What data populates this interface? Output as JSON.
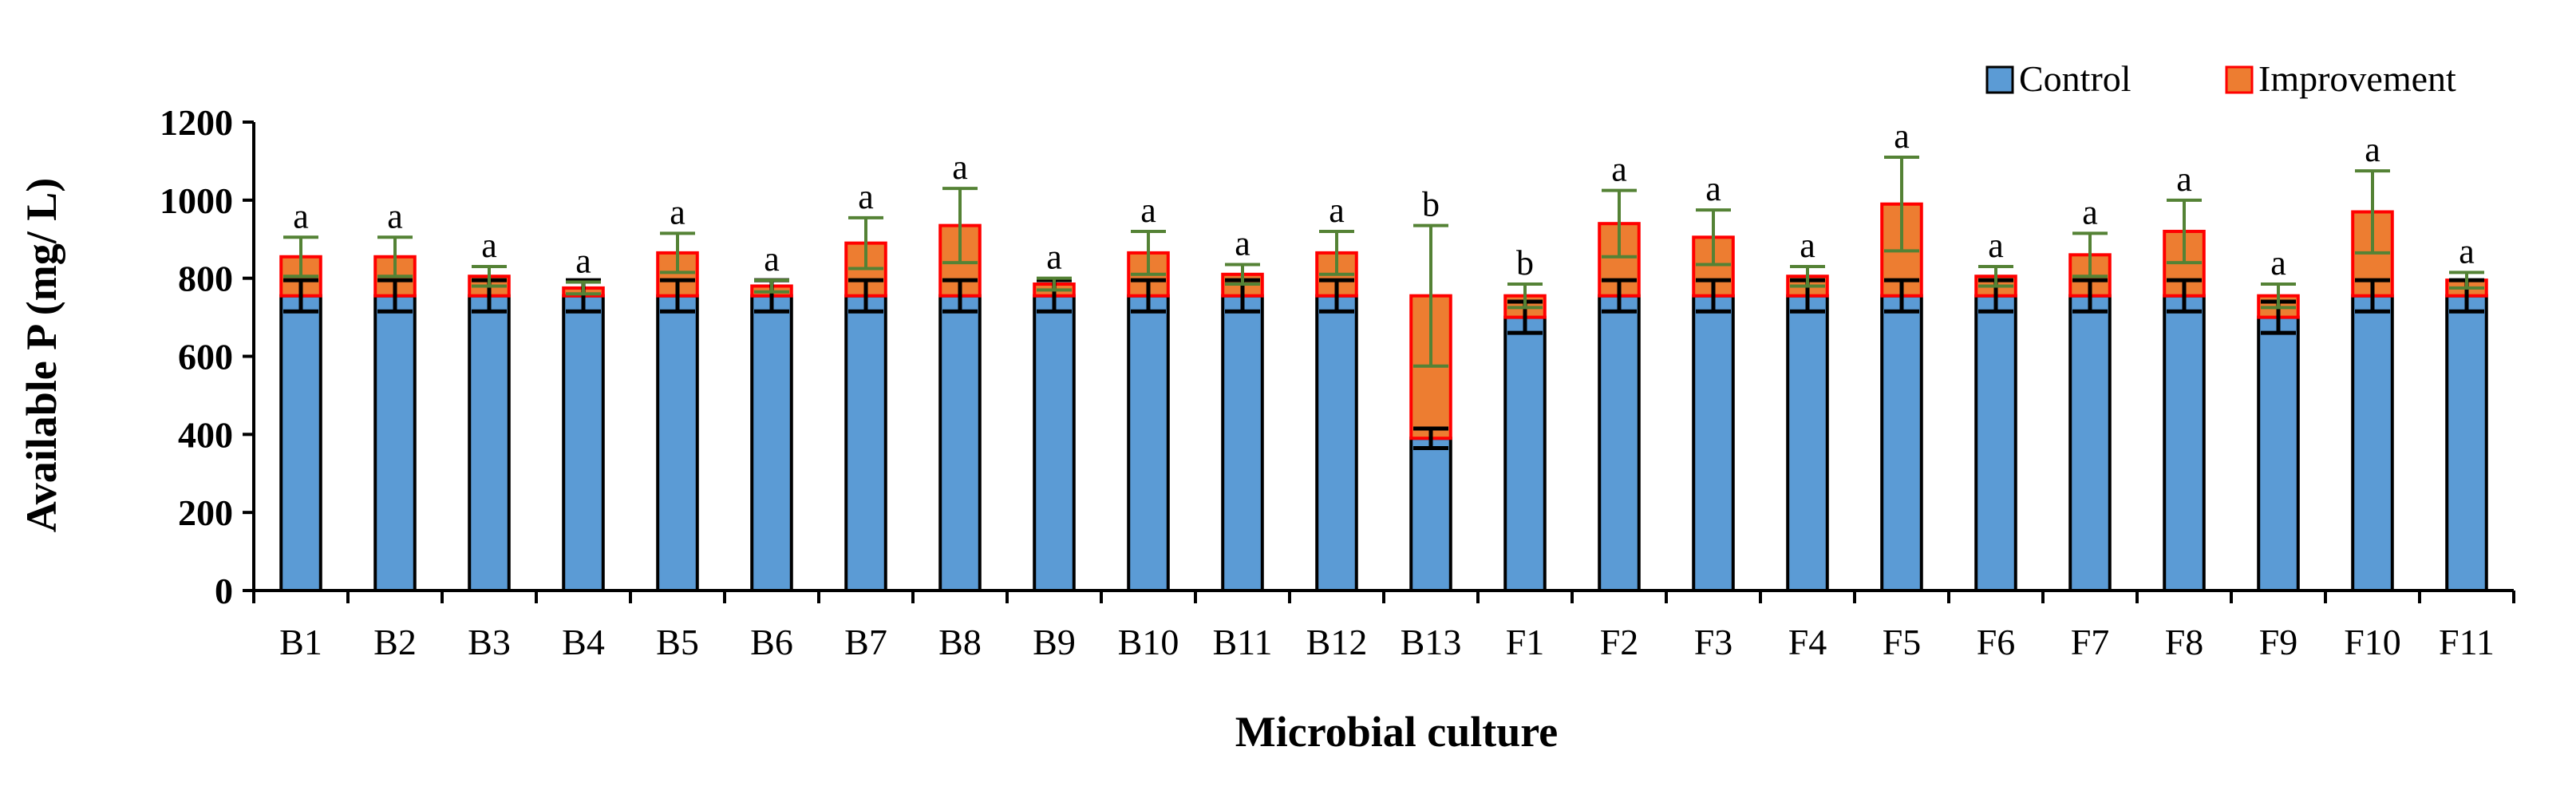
{
  "chart_data": {
    "type": "bar",
    "stacked": true,
    "title": "",
    "xlabel": "Microbial culture",
    "ylabel": "Available P (mg/ L)",
    "ylim": [
      0,
      1200
    ],
    "yticks": [
      0,
      200,
      400,
      600,
      800,
      1000,
      1200
    ],
    "grid": false,
    "legend_position": "top-right",
    "categories": [
      "B1",
      "B2",
      "B3",
      "B4",
      "B5",
      "B6",
      "B7",
      "B8",
      "B9",
      "B10",
      "B11",
      "B12",
      "B13",
      "F1",
      "F2",
      "F3",
      "F4",
      "F5",
      "F6",
      "F7",
      "F8",
      "F9",
      "F10",
      "F11"
    ],
    "series": [
      {
        "name": "Control",
        "color": "#5B9BD5",
        "values": [
          755,
          755,
          755,
          755,
          755,
          755,
          755,
          755,
          755,
          755,
          755,
          755,
          390,
          700,
          755,
          755,
          755,
          755,
          755,
          755,
          755,
          700,
          755,
          755
        ],
        "errors": [
          40,
          40,
          40,
          40,
          40,
          40,
          40,
          40,
          40,
          40,
          40,
          40,
          25,
          40,
          40,
          40,
          40,
          40,
          40,
          40,
          40,
          40,
          40,
          40
        ]
      },
      {
        "name": "Improvement",
        "color": "#ED7D31",
        "border": "#FF0000",
        "values": [
          100,
          100,
          50,
          20,
          110,
          25,
          135,
          180,
          30,
          110,
          55,
          110,
          365,
          55,
          185,
          150,
          50,
          235,
          50,
          105,
          165,
          55,
          215,
          40
        ],
        "errors": [
          50,
          50,
          25,
          15,
          50,
          15,
          65,
          95,
          15,
          55,
          25,
          55,
          180,
          30,
          85,
          70,
          25,
          120,
          25,
          55,
          80,
          30,
          105,
          20
        ]
      }
    ],
    "significance": [
      "a",
      "a",
      "a",
      "a",
      "a",
      "a",
      "a",
      "a",
      "a",
      "a",
      "a",
      "a",
      "b",
      "b",
      "a",
      "a",
      "a",
      "a",
      "a",
      "a",
      "a",
      "a",
      "a",
      "a"
    ],
    "error_colors": {
      "control": "#000000",
      "improvement": "#548235"
    }
  }
}
